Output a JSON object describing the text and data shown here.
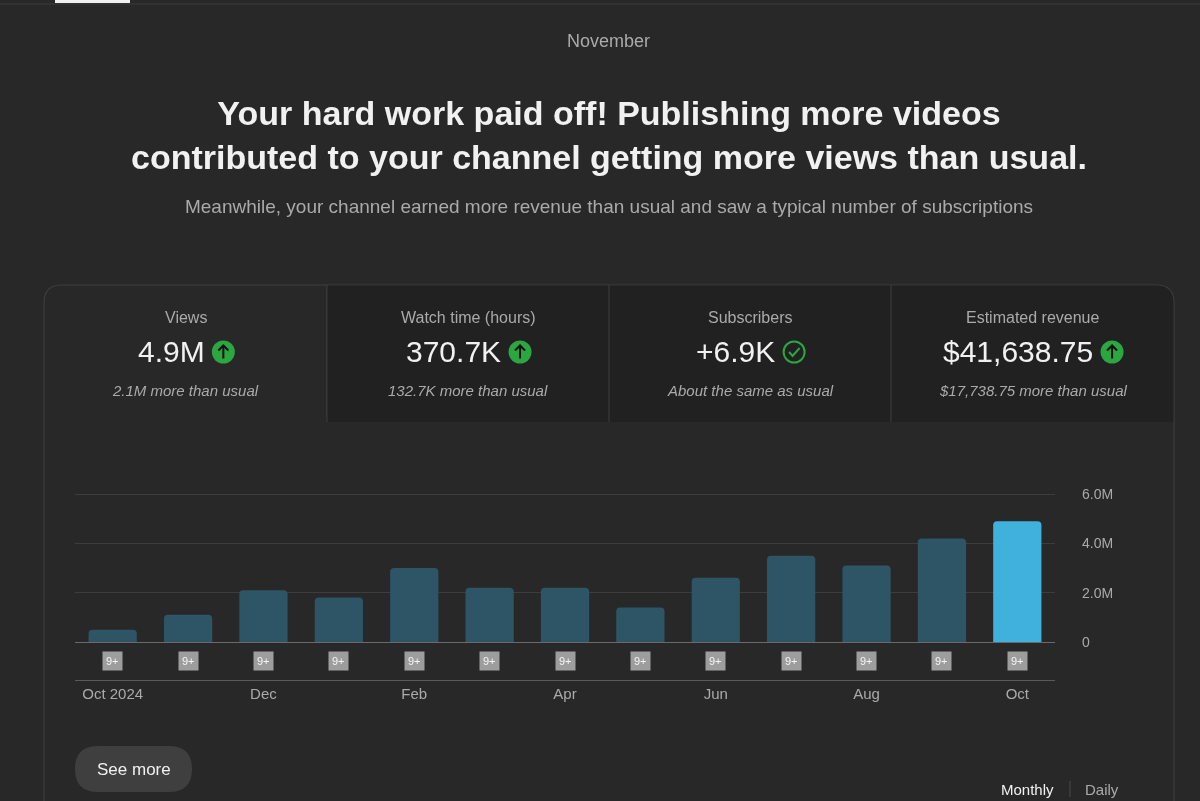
{
  "chart_data": {
    "type": "bar",
    "title": "Your hard work paid off! Publishing more videos contributed to your channel getting more views than usual.",
    "subtitle": "Meanwhile, your channel earned more revenue than usual and saw a typical number of subscriptions",
    "categories": [
      "Oct 2024",
      null,
      "Dec",
      null,
      "Feb",
      null,
      "Apr",
      null,
      "Jun",
      null,
      "Aug",
      null,
      "Oct"
    ],
    "values": [
      500000,
      1100000,
      2100000,
      1800000,
      3000000,
      2200000,
      2200000,
      1400000,
      2600000,
      3500000,
      3100000,
      4200000,
      4900000
    ],
    "colors": [
      "#2e5566",
      "#2e5566",
      "#2e5566",
      "#2e5566",
      "#2e5566",
      "#2e5566",
      "#2e5566",
      "#2e5566",
      "#2e5566",
      "#2e5566",
      "#2e5566",
      "#2e5566",
      "#3fb1dc"
    ],
    "ylim": [
      0,
      6000000
    ],
    "yticks": [
      0,
      {
        "value": 2000000,
        "label": "2.0M"
      },
      {
        "value": 4000000,
        "label": "4.0M"
      },
      {
        "value": 6000000,
        "label": "6.0M"
      }
    ],
    "grid": "y",
    "annotations": [
      "November",
      "Views",
      "4.9M",
      "2.1M more than usual",
      "Watch time (hours)",
      "370.7K",
      "132.7K more than usual",
      "Subscribers",
      "+6.9K",
      "About the same as usual",
      "Estimated revenue",
      "$41,638.75",
      "$17,738.75 more than usual",
      "9+",
      "9+",
      "9+",
      "9+",
      "9+",
      "9+",
      "9+",
      "9+",
      "9+",
      "9+",
      "9+",
      "9+",
      "9+",
      "See more",
      "Monthly",
      "Daily"
    ]
  }
}
